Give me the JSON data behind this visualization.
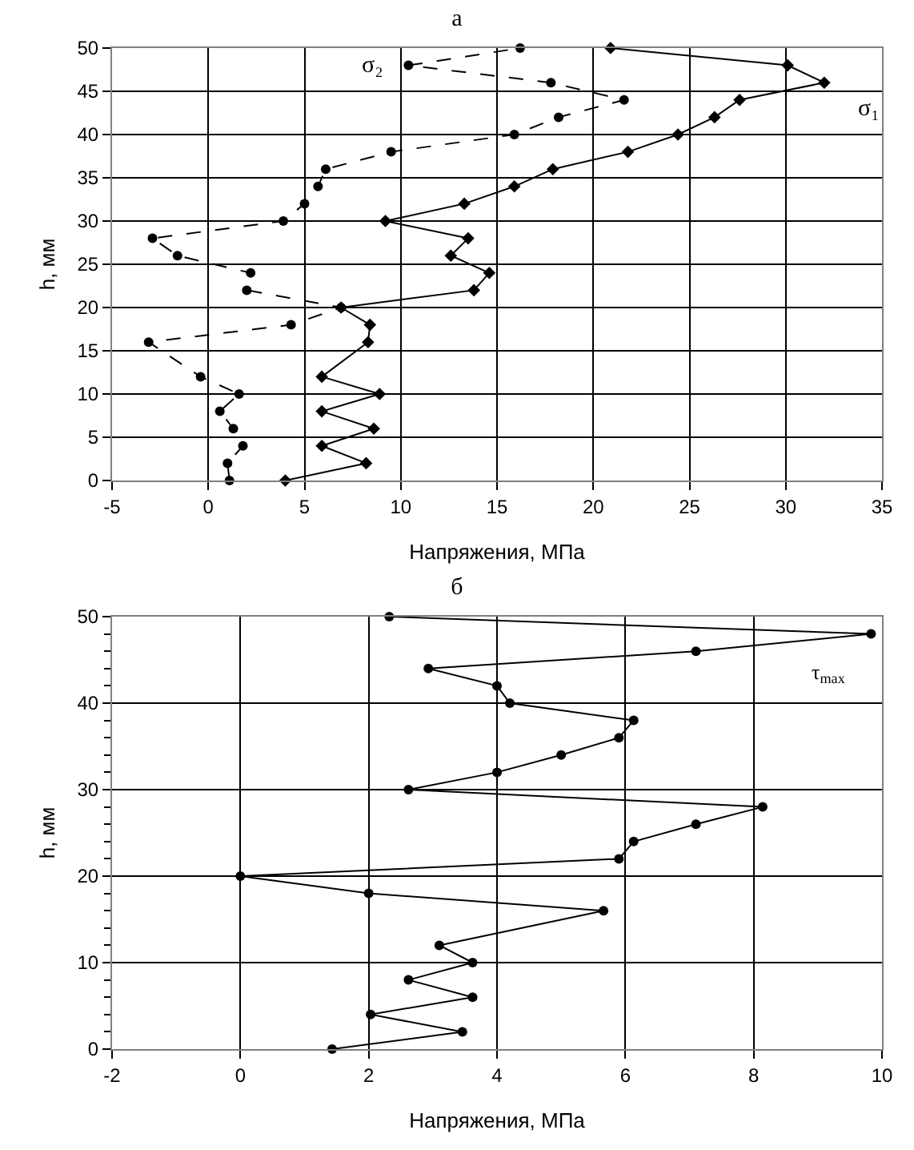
{
  "chart_data": [
    {
      "type": "line",
      "title": "а",
      "xlabel": "Напряжения, МПа",
      "ylabel": "h, мм",
      "xlim": [
        -5,
        35
      ],
      "xticks": [
        -5,
        0,
        5,
        10,
        15,
        20,
        25,
        30,
        35
      ],
      "ylim": [
        0,
        50
      ],
      "yticks": [
        0,
        5,
        10,
        15,
        20,
        25,
        30,
        35,
        40,
        45,
        50
      ],
      "grid": true,
      "series": [
        {
          "name": "σ₁",
          "color": "#000000",
          "marker": "diamond",
          "line_style": "solid",
          "x": [
            4.0,
            8.2,
            5.9,
            8.6,
            5.9,
            8.9,
            5.9,
            8.3,
            8.4,
            6.9,
            13.8,
            14.6,
            12.6,
            13.5,
            9.2,
            13.3,
            15.9,
            17.9,
            21.8,
            24.4,
            26.3,
            27.6,
            32.0,
            30.1,
            20.9
          ],
          "values": [
            0,
            2,
            4,
            6,
            8,
            10,
            12,
            16,
            18,
            20,
            22,
            24,
            26,
            28,
            30,
            32,
            34,
            36,
            38,
            40,
            42,
            44,
            46,
            48,
            50
          ]
        },
        {
          "name": "σ₂",
          "color": "#000000",
          "marker": "circle",
          "line_style": "dashed",
          "x": [
            1.1,
            1.0,
            1.8,
            1.3,
            0.6,
            1.6,
            -0.4,
            -3.1,
            4.3,
            6.9,
            2.0,
            2.2,
            -1.6,
            -2.9,
            3.9,
            5.0,
            5.7,
            6.1,
            9.5,
            15.9,
            18.2,
            21.6,
            17.8,
            10.4,
            16.2
          ],
          "values": [
            0,
            2,
            4,
            6,
            8,
            10,
            12,
            16,
            18,
            20,
            22,
            24,
            26,
            28,
            30,
            32,
            34,
            36,
            38,
            40,
            42,
            44,
            46,
            48,
            50
          ]
        }
      ]
    },
    {
      "type": "line",
      "title": "б",
      "xlabel": "Напряжения, МПа",
      "ylabel": "h, мм",
      "xlim": [
        -2,
        10
      ],
      "xticks": [
        -2,
        0,
        2,
        4,
        6,
        8,
        10
      ],
      "ylim": [
        0,
        50
      ],
      "yticks": [
        0,
        {
          "value": 2,
          "label": null
        },
        {
          "value": 4,
          "label": null
        },
        {
          "value": 6,
          "label": null
        },
        {
          "value": 8,
          "label": null
        },
        10,
        {
          "value": 12,
          "label": null
        },
        {
          "value": 14,
          "label": null
        },
        {
          "value": 16,
          "label": null
        },
        {
          "value": 18,
          "label": null
        },
        20,
        {
          "value": 22,
          "label": null
        },
        {
          "value": 24,
          "label": null
        },
        {
          "value": 26,
          "label": null
        },
        {
          "value": 28,
          "label": null
        },
        30,
        {
          "value": 32,
          "label": null
        },
        {
          "value": 34,
          "label": null
        },
        {
          "value": 36,
          "label": null
        },
        {
          "value": 38,
          "label": null
        },
        40,
        {
          "value": 42,
          "label": null
        },
        {
          "value": 44,
          "label": null
        },
        {
          "value": 46,
          "label": null
        },
        {
          "value": 48,
          "label": null
        },
        50
      ],
      "grid": true,
      "series": [
        {
          "name": "τ$_{max}$",
          "color": "#000000",
          "marker": "circle",
          "line_style": "solid",
          "x": [
            1.43,
            3.46,
            2.03,
            3.62,
            2.62,
            3.62,
            3.1,
            5.66,
            2.0,
            0,
            5.9,
            6.13,
            7.1,
            8.14,
            2.62,
            4.0,
            5.0,
            5.9,
            6.13,
            4.2,
            4.0,
            2.93,
            7.1,
            9.83,
            2.32
          ],
          "values": [
            0,
            2,
            4,
            6,
            8,
            10,
            12,
            16,
            18,
            20,
            22,
            24,
            26,
            28,
            30,
            32,
            34,
            36,
            38,
            40,
            42,
            44,
            46,
            48,
            50
          ]
        }
      ]
    }
  ]
}
